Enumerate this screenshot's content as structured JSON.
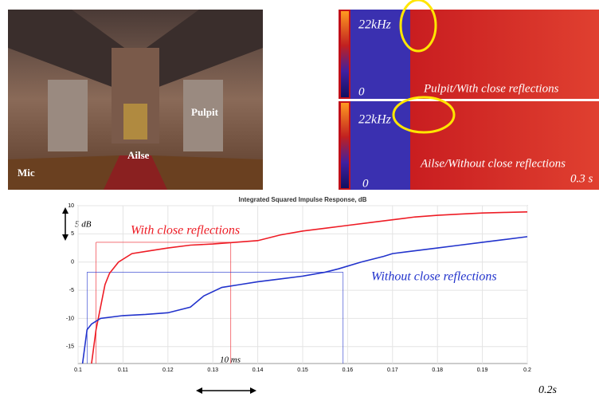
{
  "photo": {
    "labels": [
      "Pulpit",
      "Ailse",
      "Mic"
    ]
  },
  "spectrograms": [
    {
      "top_label": "22kHz",
      "bottom_label": "0",
      "caption": "Pulpit/With close reflections"
    },
    {
      "top_label": "22kHz",
      "bottom_label": "0",
      "caption": "Ailse/Without close reflections",
      "time_label": "0.3 s"
    }
  ],
  "chart_data": {
    "type": "line",
    "title": "Integrated Squared Impulse Response, dB",
    "xlim": [
      0.1,
      0.2
    ],
    "xticks": [
      0.1,
      0.11,
      0.12,
      0.13,
      0.14,
      0.15,
      0.16,
      0.17,
      0.18,
      0.19,
      0.2
    ],
    "ylim": [
      -18,
      10
    ],
    "yticks": [
      10,
      5,
      0,
      -5,
      -10,
      -15
    ],
    "grid": true,
    "series": [
      {
        "name": "With close reflections",
        "color": "#ee1c25",
        "x": [
          0.103,
          0.104,
          0.105,
          0.106,
          0.107,
          0.109,
          0.112,
          0.116,
          0.12,
          0.125,
          0.13,
          0.135,
          0.14,
          0.145,
          0.15,
          0.155,
          0.16,
          0.165,
          0.17,
          0.175,
          0.18,
          0.185,
          0.19,
          0.195,
          0.2
        ],
        "values": [
          -18,
          -12,
          -8,
          -4,
          -2,
          0,
          1.5,
          2,
          2.5,
          3,
          3.2,
          3.5,
          3.8,
          4.8,
          5.5,
          6,
          6.5,
          7,
          7.5,
          8,
          8.3,
          8.5,
          8.7,
          8.8,
          8.9
        ]
      },
      {
        "name": "Without close reflections",
        "color": "#2233cc",
        "x": [
          0.101,
          0.102,
          0.103,
          0.105,
          0.11,
          0.115,
          0.12,
          0.125,
          0.128,
          0.132,
          0.136,
          0.14,
          0.145,
          0.15,
          0.155,
          0.158,
          0.163,
          0.168,
          0.17,
          0.175,
          0.18,
          0.185,
          0.19,
          0.195,
          0.2
        ],
        "values": [
          -18,
          -12,
          -11,
          -10,
          -9.5,
          -9.3,
          -9,
          -8,
          -6,
          -4.5,
          -4,
          -3.5,
          -3,
          -2.5,
          -1.8,
          -1.2,
          0,
          1,
          1.5,
          2,
          2.5,
          3,
          3.5,
          4,
          4.5
        ]
      }
    ],
    "guides": [
      {
        "color": "#ee1c25",
        "x": [
          0.104,
          0.134
        ],
        "y": 3.5
      },
      {
        "color": "#2233cc",
        "x": [
          0.102,
          0.159
        ],
        "y": -1.8
      }
    ],
    "annotations": [
      "5 dB",
      "10 ms",
      "0.2s"
    ]
  }
}
